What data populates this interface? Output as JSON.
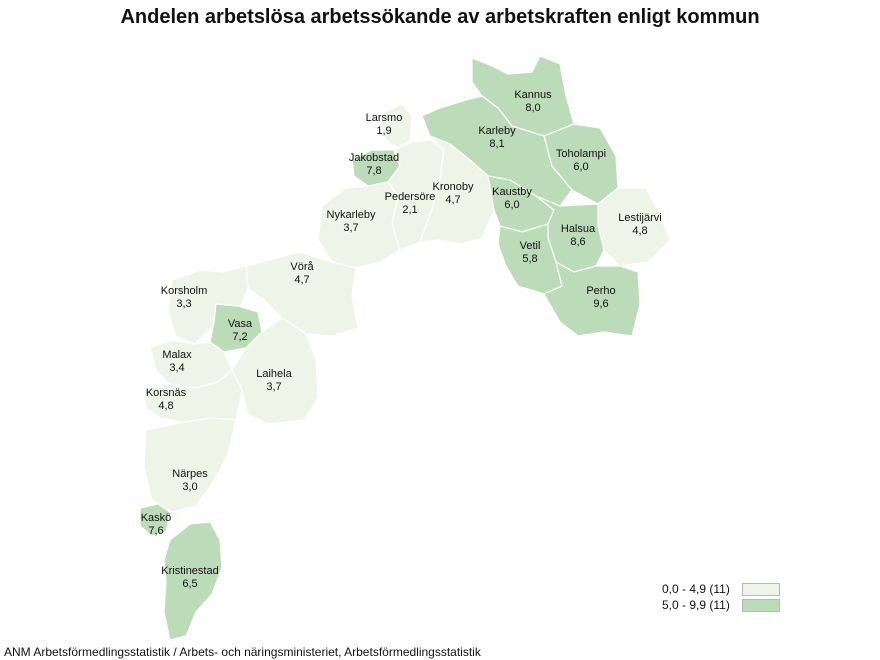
{
  "title": "Andelen arbetslösa arbetssökande av arbetskraften enligt kommun",
  "colors": {
    "low": "#eef5e8",
    "high": "#bcdbb9",
    "border": "#ffffff"
  },
  "legend": [
    {
      "label": "0,0 - 4,9 (11)",
      "class": "low"
    },
    {
      "label": "5,0 - 9,9 (11)",
      "class": "high"
    }
  ],
  "source": "ANM Arbetsförmedlingsstatistik / Arbets- och näringsministeriet, Arbetsförmedlingsstatistik",
  "municipalities": [
    {
      "name": "Kannus",
      "value": "8,0",
      "class": "high"
    },
    {
      "name": "Larsmo",
      "value": "1,9",
      "class": "low"
    },
    {
      "name": "Karleby",
      "value": "8,1",
      "class": "high"
    },
    {
      "name": "Toholampi",
      "value": "6,0",
      "class": "high"
    },
    {
      "name": "Jakobstad",
      "value": "7,8",
      "class": "high"
    },
    {
      "name": "Pedersöre",
      "value": "2,1",
      "class": "low"
    },
    {
      "name": "Kronoby",
      "value": "4,7",
      "class": "low"
    },
    {
      "name": "Kaustby",
      "value": "6,0",
      "class": "high"
    },
    {
      "name": "Lestijärvi",
      "value": "4,8",
      "class": "low"
    },
    {
      "name": "Nykarleby",
      "value": "3,7",
      "class": "low"
    },
    {
      "name": "Halsua",
      "value": "8,6",
      "class": "high"
    },
    {
      "name": "Vetil",
      "value": "5,8",
      "class": "high"
    },
    {
      "name": "Vörå",
      "value": "4,7",
      "class": "low"
    },
    {
      "name": "Perho",
      "value": "9,6",
      "class": "high"
    },
    {
      "name": "Korsholm",
      "value": "3,3",
      "class": "low"
    },
    {
      "name": "Vasa",
      "value": "7,2",
      "class": "high"
    },
    {
      "name": "Malax",
      "value": "3,4",
      "class": "low"
    },
    {
      "name": "Laihela",
      "value": "3,7",
      "class": "low"
    },
    {
      "name": "Korsnäs",
      "value": "4,8",
      "class": "low"
    },
    {
      "name": "Närpes",
      "value": "3,0",
      "class": "low"
    },
    {
      "name": "Kaskö",
      "value": "7,6",
      "class": "high"
    },
    {
      "name": "Kristinestad",
      "value": "6,5",
      "class": "high"
    }
  ]
}
